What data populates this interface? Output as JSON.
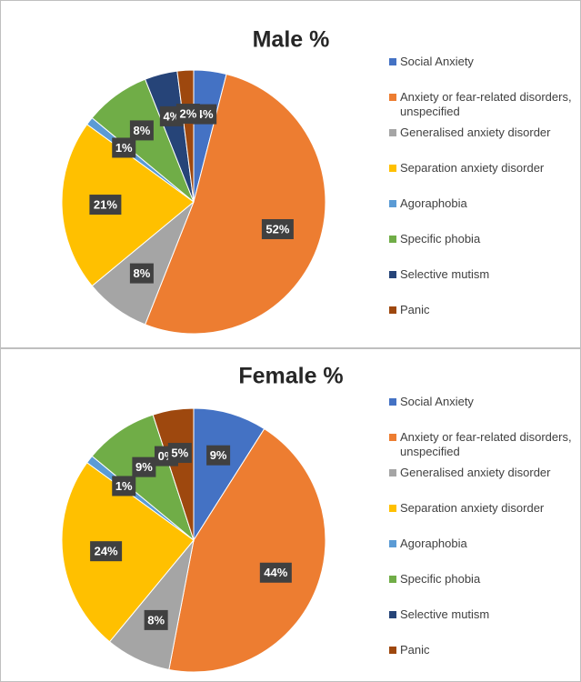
{
  "chart_data": [
    {
      "type": "pie",
      "title": "Male %",
      "categories": [
        "Social Anxiety",
        "Anxiety or fear-related disorders, unspecified",
        "Generalised anxiety disorder",
        "Separation anxiety disorder",
        "Agoraphobia",
        "Specific phobia",
        "Selective mutism",
        "Panic"
      ],
      "values": [
        4,
        52,
        8,
        21,
        1,
        8,
        4,
        2
      ],
      "value_labels": [
        "4%",
        "52%",
        "8%",
        "21%",
        "1%",
        "8%",
        "4%",
        "2%"
      ],
      "colors": [
        "#4472c4",
        "#ed7d31",
        "#a5a5a5",
        "#ffc000",
        "#5b9bd5",
        "#70ad47",
        "#264478",
        "#9e480e"
      ]
    },
    {
      "type": "pie",
      "title": "Female %",
      "categories": [
        "Social Anxiety",
        "Anxiety or fear-related disorders, unspecified",
        "Generalised anxiety disorder",
        "Separation anxiety disorder",
        "Agoraphobia",
        "Specific phobia",
        "Selective mutism",
        "Panic"
      ],
      "values": [
        9,
        44,
        8,
        24,
        1,
        9,
        0,
        5
      ],
      "value_labels": [
        "9%",
        "44%",
        "8%",
        "24%",
        "1%",
        "9%",
        "0%",
        "5%"
      ],
      "colors": [
        "#4472c4",
        "#ed7d31",
        "#a5a5a5",
        "#ffc000",
        "#5b9bd5",
        "#70ad47",
        "#264478",
        "#9e480e"
      ]
    }
  ]
}
